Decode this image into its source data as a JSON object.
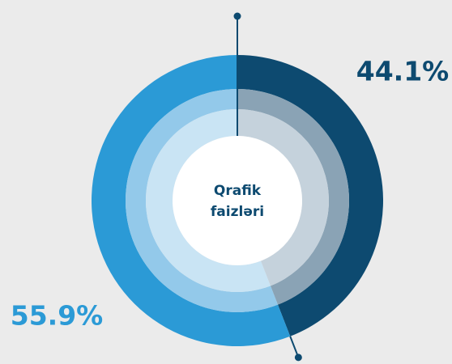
{
  "chart_data": {
    "type": "pie",
    "center_label": [
      "Qrafik",
      "faizləri"
    ],
    "values": [
      44.1,
      55.9
    ],
    "value_labels": [
      "44.1%",
      "55.9%"
    ],
    "colors": [
      [
        "#0d4a70",
        "#8aa3b5",
        "#c5d2dc"
      ],
      [
        "#2b9ad6",
        "#93c9ea",
        "#c9e4f4"
      ]
    ],
    "label_colors": [
      "#0d4a70",
      "#2b9ad6"
    ]
  }
}
